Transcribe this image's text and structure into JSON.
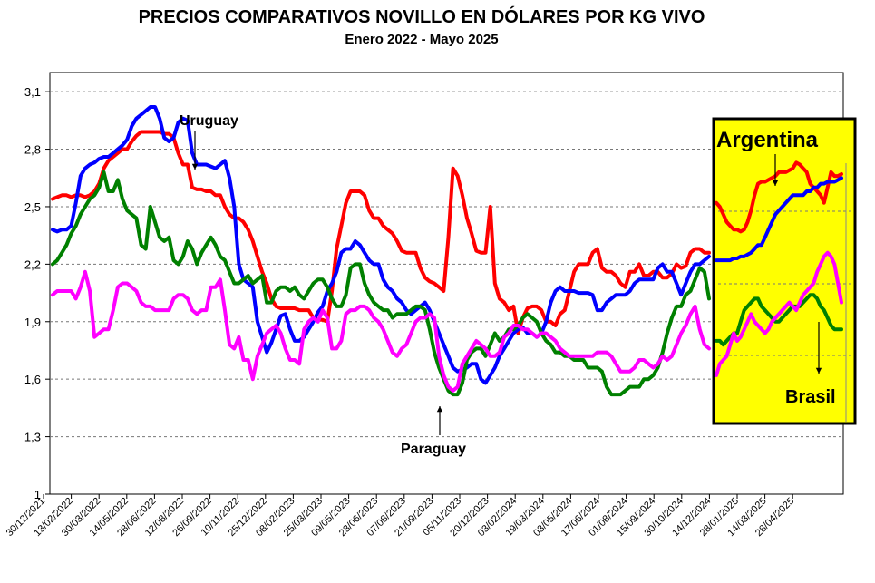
{
  "chart_data": {
    "type": "line",
    "title": "PRECIOS COMPARATIVOS NOVILLO EN DÓLARES POR KG  VIVO",
    "subtitle": "Enero  2022 -  Mayo 2025",
    "ylim": [
      1.0,
      3.2
    ],
    "yticks": [
      "1",
      "1,3",
      "1,6",
      "1,9",
      "2,2",
      "2,5",
      "2,8",
      "3,1"
    ],
    "ytick_values": [
      1.0,
      1.3,
      1.6,
      1.9,
      2.2,
      2.5,
      2.8,
      3.1
    ],
    "grid": "horizontal dashed",
    "x_labels": [
      "30/12/2021",
      "13/02/2022",
      "30/03/2022",
      "14/05/2022",
      "28/06/2022",
      "12/08/2022",
      "26/09/2022",
      "10/11/2022",
      "25/12/2022",
      "08/02/2023",
      "25/03/2023",
      "09/05/2023",
      "23/06/2023",
      "07/08/2023",
      "21/09/2023",
      "05/11/2023",
      "20/12/2023",
      "03/02/2024",
      "19/03/2024",
      "03/05/2024",
      "17/06/2024",
      "01/08/2024",
      "15/09/2024",
      "30/10/2024",
      "14/12/2024",
      "28/01/2025",
      "14/03/2025",
      "28/04/2025"
    ],
    "annotations": [
      {
        "text": "Uruguay",
        "series": "Uruguay"
      },
      {
        "text": "Paraguay",
        "series": "Paraguay"
      },
      {
        "text": "Argentina",
        "series": "Argentina"
      },
      {
        "text": "Brasil",
        "series": "Brasil"
      }
    ],
    "x_count": 142,
    "inset_x_count": 37,
    "series": [
      {
        "name": "Argentina",
        "color": "#ff0000",
        "values": [
          2.54,
          2.55,
          2.56,
          2.56,
          2.55,
          2.56,
          2.56,
          2.55,
          2.56,
          2.58,
          2.62,
          2.7,
          2.74,
          2.76,
          2.78,
          2.8,
          2.8,
          2.84,
          2.87,
          2.89,
          2.89,
          2.89,
          2.89,
          2.89,
          2.88,
          2.88,
          2.86,
          2.78,
          2.72,
          2.72,
          2.6,
          2.59,
          2.59,
          2.58,
          2.58,
          2.56,
          2.56,
          2.5,
          2.46,
          2.44,
          2.44,
          2.42,
          2.38,
          2.32,
          2.24,
          2.16,
          2.1,
          2.02,
          1.98,
          1.97,
          1.97,
          1.97,
          1.97,
          1.96,
          1.96,
          1.96,
          1.92,
          1.91,
          1.91,
          1.9,
          2.06,
          2.28,
          2.4,
          2.52,
          2.58,
          2.58,
          2.58,
          2.56,
          2.48,
          2.44,
          2.44,
          2.4,
          2.38,
          2.36,
          2.32,
          2.27,
          2.26,
          2.26,
          2.26,
          2.18,
          2.13,
          2.11,
          2.1,
          2.08,
          2.06,
          2.34,
          2.7,
          2.66,
          2.56,
          2.44,
          2.36,
          2.27,
          2.26,
          2.26,
          2.5,
          2.1,
          2.02,
          2.0,
          1.96,
          1.98,
          1.84,
          1.92,
          1.97,
          1.98,
          1.98,
          1.96,
          1.9,
          1.9,
          1.88,
          1.94,
          1.96,
          2.06,
          2.16,
          2.2,
          2.2,
          2.2,
          2.26,
          2.28,
          2.18,
          2.16,
          2.16,
          2.14,
          2.1,
          2.08,
          2.16,
          2.16,
          2.2,
          2.14,
          2.14,
          2.16,
          2.16,
          2.13,
          2.13,
          2.15,
          2.2,
          2.18,
          2.19,
          2.26,
          2.28,
          2.28,
          2.26,
          2.26
        ]
      },
      {
        "name": "Uruguay",
        "color": "#0000ff",
        "values": [
          2.38,
          2.37,
          2.38,
          2.38,
          2.4,
          2.52,
          2.66,
          2.7,
          2.72,
          2.73,
          2.75,
          2.76,
          2.76,
          2.78,
          2.8,
          2.82,
          2.85,
          2.92,
          2.96,
          2.98,
          3.0,
          3.02,
          3.02,
          2.96,
          2.86,
          2.84,
          2.86,
          2.94,
          2.96,
          2.95,
          2.78,
          2.72,
          2.72,
          2.72,
          2.71,
          2.7,
          2.72,
          2.74,
          2.65,
          2.5,
          2.2,
          2.12,
          2.1,
          2.08,
          1.9,
          1.82,
          1.74,
          1.79,
          1.86,
          1.93,
          1.94,
          1.86,
          1.8,
          1.8,
          1.82,
          1.86,
          1.9,
          1.95,
          1.98,
          2.06,
          2.1,
          2.16,
          2.26,
          2.28,
          2.28,
          2.32,
          2.3,
          2.26,
          2.22,
          2.2,
          2.2,
          2.12,
          2.08,
          2.06,
          2.02,
          2.0,
          1.96,
          1.94,
          1.96,
          1.98,
          2.0,
          1.96,
          1.9,
          1.84,
          1.78,
          1.72,
          1.66,
          1.64,
          1.65,
          1.66,
          1.68,
          1.68,
          1.6,
          1.58,
          1.62,
          1.66,
          1.72,
          1.76,
          1.8,
          1.84,
          1.86,
          1.87,
          1.84,
          1.84,
          1.82,
          1.84,
          1.9,
          2.0,
          2.06,
          2.08,
          2.06,
          2.06,
          2.06,
          2.05,
          2.05,
          2.05,
          2.04,
          1.96,
          1.96,
          2.0,
          2.02,
          2.04,
          2.04,
          2.04,
          2.06,
          2.1,
          2.12,
          2.12,
          2.12,
          2.12,
          2.18,
          2.2,
          2.16,
          2.16,
          2.1,
          2.04,
          2.1,
          2.16,
          2.2,
          2.2,
          2.22,
          2.24
        ]
      },
      {
        "name": "Brasil",
        "color": "#008000",
        "values": [
          2.2,
          2.22,
          2.26,
          2.3,
          2.36,
          2.4,
          2.46,
          2.5,
          2.54,
          2.56,
          2.6,
          2.68,
          2.58,
          2.58,
          2.64,
          2.54,
          2.48,
          2.46,
          2.44,
          2.3,
          2.28,
          2.5,
          2.42,
          2.34,
          2.32,
          2.34,
          2.22,
          2.2,
          2.24,
          2.32,
          2.28,
          2.2,
          2.26,
          2.3,
          2.34,
          2.3,
          2.24,
          2.22,
          2.16,
          2.1,
          2.1,
          2.12,
          2.14,
          2.1,
          2.12,
          2.14,
          2.0,
          2.0,
          2.06,
          2.08,
          2.08,
          2.06,
          2.08,
          2.04,
          2.02,
          2.06,
          2.1,
          2.12,
          2.12,
          2.08,
          2.02,
          1.98,
          1.98,
          2.04,
          2.18,
          2.2,
          2.2,
          2.1,
          2.04,
          2.0,
          1.98,
          1.96,
          1.96,
          1.92,
          1.94,
          1.94,
          1.94,
          1.96,
          1.98,
          1.98,
          1.96,
          1.86,
          1.74,
          1.66,
          1.6,
          1.54,
          1.52,
          1.52,
          1.58,
          1.7,
          1.74,
          1.76,
          1.76,
          1.72,
          1.78,
          1.84,
          1.8,
          1.82,
          1.86,
          1.86,
          1.88,
          1.92,
          1.94,
          1.92,
          1.9,
          1.84,
          1.8,
          1.78,
          1.74,
          1.74,
          1.72,
          1.72,
          1.7,
          1.7,
          1.7,
          1.66,
          1.66,
          1.66,
          1.64,
          1.56,
          1.52,
          1.52,
          1.52,
          1.54,
          1.56,
          1.56,
          1.56,
          1.6,
          1.6,
          1.62,
          1.66,
          1.74,
          1.84,
          1.92,
          1.98,
          1.98,
          2.04,
          2.06,
          2.12,
          2.18,
          2.16,
          2.02
        ]
      },
      {
        "name": "Paraguay",
        "color": "#ff00ff",
        "values": [
          2.04,
          2.06,
          2.06,
          2.06,
          2.06,
          2.02,
          2.08,
          2.16,
          2.06,
          1.82,
          1.84,
          1.86,
          1.86,
          1.96,
          2.08,
          2.1,
          2.1,
          2.08,
          2.06,
          2.0,
          1.98,
          1.98,
          1.96,
          1.96,
          1.96,
          1.96,
          2.02,
          2.04,
          2.04,
          2.02,
          1.96,
          1.94,
          1.96,
          1.96,
          2.08,
          2.08,
          2.12,
          1.96,
          1.78,
          1.76,
          1.82,
          1.7,
          1.7,
          1.6,
          1.72,
          1.78,
          1.84,
          1.86,
          1.88,
          1.84,
          1.76,
          1.7,
          1.7,
          1.68,
          1.86,
          1.9,
          1.92,
          1.9,
          1.96,
          1.92,
          1.76,
          1.76,
          1.8,
          1.94,
          1.96,
          1.96,
          1.98,
          1.98,
          1.96,
          1.92,
          1.9,
          1.86,
          1.8,
          1.74,
          1.72,
          1.76,
          1.78,
          1.84,
          1.9,
          1.92,
          1.92,
          1.94,
          1.92,
          1.72,
          1.62,
          1.56,
          1.54,
          1.56,
          1.68,
          1.72,
          1.76,
          1.8,
          1.78,
          1.76,
          1.72,
          1.72,
          1.74,
          1.82,
          1.84,
          1.88,
          1.88,
          1.86,
          1.86,
          1.84,
          1.82,
          1.84,
          1.84,
          1.82,
          1.8,
          1.76,
          1.74,
          1.72,
          1.72,
          1.72,
          1.72,
          1.72,
          1.72,
          1.74,
          1.74,
          1.74,
          1.72,
          1.68,
          1.64,
          1.64,
          1.64,
          1.66,
          1.7,
          1.7,
          1.68,
          1.66,
          1.68,
          1.72,
          1.7,
          1.72,
          1.78,
          1.84,
          1.88,
          1.94,
          1.98,
          1.86,
          1.78,
          1.76
        ]
      }
    ],
    "inset_series": [
      {
        "name": "Argentina",
        "color": "#ff0000",
        "values": [
          2.52,
          2.5,
          2.46,
          2.42,
          2.4,
          2.38,
          2.38,
          2.37,
          2.38,
          2.42,
          2.48,
          2.56,
          2.62,
          2.63,
          2.63,
          2.64,
          2.65,
          2.66,
          2.68,
          2.68,
          2.68,
          2.69,
          2.7,
          2.73,
          2.72,
          2.7,
          2.68,
          2.62,
          2.6,
          2.58,
          2.56,
          2.52,
          2.6,
          2.68,
          2.66,
          2.66,
          2.67
        ]
      },
      {
        "name": "Uruguay",
        "color": "#0000ff",
        "values": [
          2.22,
          2.22,
          2.22,
          2.22,
          2.22,
          2.23,
          2.23,
          2.24,
          2.24,
          2.25,
          2.26,
          2.28,
          2.3,
          2.3,
          2.34,
          2.38,
          2.42,
          2.46,
          2.48,
          2.5,
          2.52,
          2.54,
          2.56,
          2.56,
          2.56,
          2.56,
          2.58,
          2.58,
          2.6,
          2.6,
          2.62,
          2.62,
          2.63,
          2.63,
          2.63,
          2.64,
          2.65
        ]
      },
      {
        "name": "Brasil",
        "color": "#008000",
        "values": [
          1.8,
          1.8,
          1.78,
          1.8,
          1.82,
          1.84,
          1.84,
          1.9,
          1.96,
          1.98,
          2.0,
          2.02,
          2.02,
          1.98,
          1.96,
          1.94,
          1.92,
          1.9,
          1.9,
          1.92,
          1.94,
          1.96,
          1.98,
          1.98,
          1.98,
          2.0,
          2.02,
          2.04,
          2.04,
          2.02,
          1.98,
          1.96,
          1.92,
          1.88,
          1.86,
          1.86,
          1.86
        ]
      },
      {
        "name": "Paraguay",
        "color": "#ff00ff",
        "values": [
          1.62,
          1.68,
          1.7,
          1.72,
          1.78,
          1.84,
          1.8,
          1.82,
          1.86,
          1.9,
          1.94,
          1.9,
          1.88,
          1.86,
          1.84,
          1.86,
          1.9,
          1.92,
          1.94,
          1.96,
          1.98,
          2.0,
          1.98,
          1.96,
          2.0,
          2.04,
          2.06,
          2.08,
          2.1,
          2.16,
          2.2,
          2.24,
          2.26,
          2.24,
          2.2,
          2.1,
          2.0
        ]
      }
    ]
  }
}
